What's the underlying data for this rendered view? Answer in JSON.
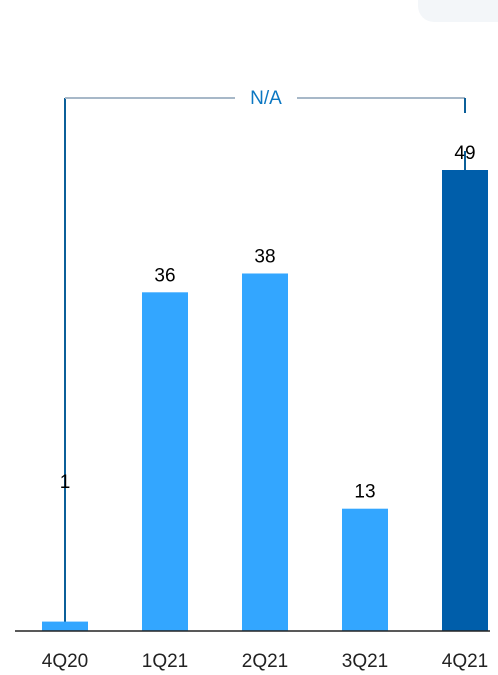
{
  "chart_data": {
    "type": "bar",
    "categories": [
      "4Q20",
      "1Q21",
      "2Q21",
      "3Q21",
      "4Q21"
    ],
    "values": [
      1,
      36,
      38,
      13,
      49
    ],
    "value_labels": [
      "1",
      "36",
      "38",
      "13",
      "49"
    ],
    "title": "",
    "xlabel": "",
    "ylabel": "",
    "ylim": [
      0,
      56
    ],
    "grid": false,
    "legend": "none",
    "annotation": {
      "text": "N/A",
      "from_category": "4Q20",
      "to_category": "4Q21"
    },
    "colors": {
      "default": "#33a6ff",
      "highlight": "#005eaa",
      "annotation": "#0b5f99",
      "annotation_text": "#0b77c2",
      "baseline": "#222222",
      "label": "#000000"
    },
    "highlight_category": "4Q21"
  }
}
